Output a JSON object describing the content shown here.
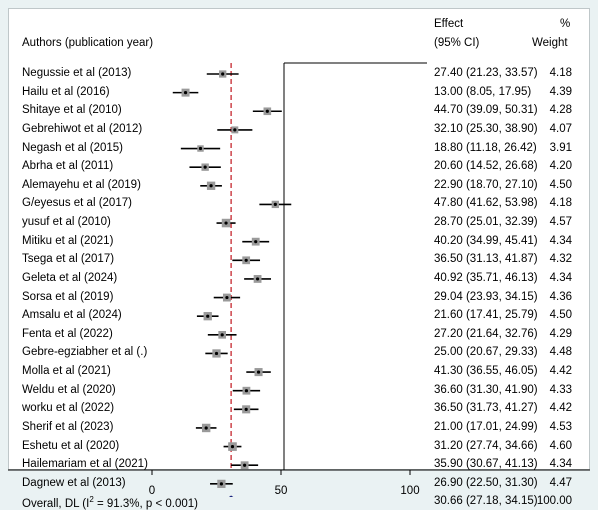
{
  "chart_data": {
    "type": "forest",
    "header": {
      "study": "Authors (publication year)",
      "effect_line1": "Effect",
      "effect_line2": "(95% CI)",
      "weight_line1": "%",
      "weight_line2": "Weight"
    },
    "studies": [
      {
        "label": "Negussie et al (2013)",
        "est": 27.4,
        "lo": 21.23,
        "hi": 33.57,
        "text": "27.40 (21.23, 33.57)",
        "weight": "4.18"
      },
      {
        "label": "Hailu et al (2016)",
        "est": 13.0,
        "lo": 8.05,
        "hi": 17.95,
        "text": "13.00 (8.05, 17.95)",
        "weight": "4.39"
      },
      {
        "label": "Shitaye et al (2010)",
        "est": 44.7,
        "lo": 39.09,
        "hi": 50.31,
        "text": "44.70 (39.09, 50.31)",
        "weight": "4.28"
      },
      {
        "label": "Gebrehiwot et al (2012)",
        "est": 32.1,
        "lo": 25.3,
        "hi": 38.9,
        "text": "32.10 (25.30, 38.90)",
        "weight": "4.07"
      },
      {
        "label": "Negash et al (2015)",
        "est": 18.8,
        "lo": 11.18,
        "hi": 26.42,
        "text": "18.80 (11.18, 26.42)",
        "weight": "3.91"
      },
      {
        "label": "Abrha et al (2011)",
        "est": 20.6,
        "lo": 14.52,
        "hi": 26.68,
        "text": "20.60 (14.52, 26.68)",
        "weight": "4.20"
      },
      {
        "label": "Alemayehu et al (2019)",
        "est": 22.9,
        "lo": 18.7,
        "hi": 27.1,
        "text": "22.90 (18.70, 27.10)",
        "weight": "4.50"
      },
      {
        "label": "G/eyesus et al (2017)",
        "est": 47.8,
        "lo": 41.62,
        "hi": 53.98,
        "text": "47.80 (41.62, 53.98)",
        "weight": "4.18"
      },
      {
        "label": "yusuf et al (2010)",
        "est": 28.7,
        "lo": 25.01,
        "hi": 32.39,
        "text": "28.70 (25.01, 32.39)",
        "weight": "4.57"
      },
      {
        "label": "Mitiku et al (2021)",
        "est": 40.2,
        "lo": 34.99,
        "hi": 45.41,
        "text": "40.20 (34.99, 45.41)",
        "weight": "4.34"
      },
      {
        "label": "Tsega et al (2017)",
        "est": 36.5,
        "lo": 31.13,
        "hi": 41.87,
        "text": "36.50 (31.13, 41.87)",
        "weight": "4.32"
      },
      {
        "label": "Geleta et al (2024)",
        "est": 40.92,
        "lo": 35.71,
        "hi": 46.13,
        "text": "40.92 (35.71, 46.13)",
        "weight": "4.34"
      },
      {
        "label": "Sorsa et al (2019)",
        "est": 29.04,
        "lo": 23.93,
        "hi": 34.15,
        "text": "29.04 (23.93, 34.15)",
        "weight": "4.36"
      },
      {
        "label": "Amsalu et al (2024)",
        "est": 21.6,
        "lo": 17.41,
        "hi": 25.79,
        "text": "21.60 (17.41, 25.79)",
        "weight": "4.50"
      },
      {
        "label": "Fenta et al (2022)",
        "est": 27.2,
        "lo": 21.64,
        "hi": 32.76,
        "text": "27.20 (21.64, 32.76)",
        "weight": "4.29"
      },
      {
        "label": "Gebre-egziabher et al (.)",
        "est": 25.0,
        "lo": 20.67,
        "hi": 29.33,
        "text": "25.00 (20.67, 29.33)",
        "weight": "4.48"
      },
      {
        "label": "Molla et al (2021)",
        "est": 41.3,
        "lo": 36.55,
        "hi": 46.05,
        "text": "41.30 (36.55, 46.05)",
        "weight": "4.42"
      },
      {
        "label": "Weldu et al (2020)",
        "est": 36.6,
        "lo": 31.3,
        "hi": 41.9,
        "text": "36.60 (31.30, 41.90)",
        "weight": "4.33"
      },
      {
        "label": "worku et al (2022)",
        "est": 36.5,
        "lo": 31.73,
        "hi": 41.27,
        "text": "36.50 (31.73, 41.27)",
        "weight": "4.42"
      },
      {
        "label": "Sherif et al (2023)",
        "est": 21.0,
        "lo": 17.01,
        "hi": 24.99,
        "text": "21.00 (17.01, 24.99)",
        "weight": "4.53"
      },
      {
        "label": "Eshetu et al (2020)",
        "est": 31.2,
        "lo": 27.74,
        "hi": 34.66,
        "text": "31.20 (27.74, 34.66)",
        "weight": "4.60"
      },
      {
        "label": "Hailemariam et al (2021)",
        "est": 35.9,
        "lo": 30.67,
        "hi": 41.13,
        "text": "35.90 (30.67, 41.13)",
        "weight": "4.34"
      },
      {
        "label": "Dagnew et al (2013)",
        "est": 26.9,
        "lo": 22.5,
        "hi": 31.3,
        "text": "26.90 (22.50, 31.30)",
        "weight": "4.47"
      }
    ],
    "overall": {
      "label_prefix": "Overall, DL (I",
      "label_sup": "2",
      "label_suffix": " = 91.3%, p < 0.001)",
      "est": 30.66,
      "lo": 27.18,
      "hi": 34.15,
      "text": "30.66 (27.18, 34.15)",
      "weight": "100.00"
    },
    "x_ticks": [
      0,
      50,
      100
    ],
    "x_tick_labels": [
      "0",
      "50",
      "100"
    ],
    "null_line": 0,
    "colors": {
      "ci_line": "#000000",
      "marker_box": "#9a9a9a",
      "overall_line": "#c0141c",
      "diamond": "#1a237e",
      "background": "#eaf2f3"
    }
  }
}
